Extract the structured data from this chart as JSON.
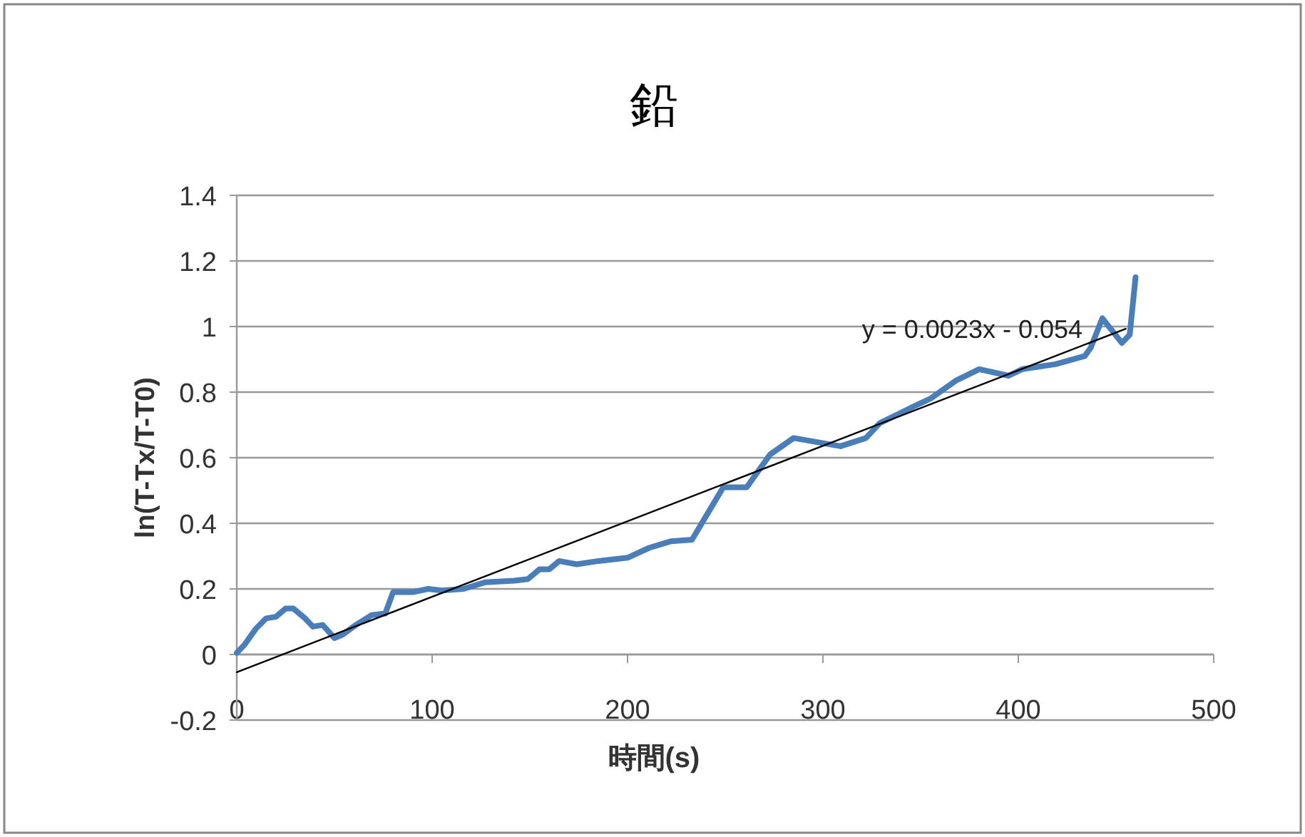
{
  "chart_data": {
    "type": "line",
    "title": "鉛",
    "xlabel": "時間(s)",
    "ylabel": "ln(T-Tx/T-T0)",
    "xlim": [
      0,
      500
    ],
    "xticks": [
      0,
      100,
      200,
      300,
      400,
      500
    ],
    "ylim": [
      -0.2,
      1.4
    ],
    "yticks": [
      -0.2,
      0,
      0.2,
      0.4,
      0.6,
      0.8,
      1,
      1.2,
      1.4
    ],
    "grid": "y",
    "annotations": [
      "y = 0.0023x - 0.054"
    ],
    "series": [
      {
        "color": "#4a7ebb",
        "x": [
          0,
          4,
          10,
          15,
          20,
          25,
          29,
          35,
          39,
          44,
          50,
          54,
          61,
          69,
          76,
          80,
          90,
          98,
          105,
          116,
          127,
          142,
          149,
          155,
          160,
          165,
          174,
          185,
          200,
          211,
          222,
          233,
          239,
          249,
          261,
          273,
          285,
          309,
          322,
          329,
          346,
          355,
          368,
          380,
          395,
          402,
          419,
          434,
          437,
          443,
          453,
          457,
          460
        ],
        "values": [
          0.005,
          0.03,
          0.08,
          0.11,
          0.115,
          0.14,
          0.14,
          0.11,
          0.085,
          0.09,
          0.05,
          0.06,
          0.09,
          0.12,
          0.125,
          0.19,
          0.19,
          0.2,
          0.195,
          0.2,
          0.22,
          0.225,
          0.23,
          0.26,
          0.26,
          0.285,
          0.275,
          0.285,
          0.295,
          0.325,
          0.345,
          0.35,
          0.41,
          0.51,
          0.51,
          0.61,
          0.66,
          0.635,
          0.66,
          0.705,
          0.755,
          0.78,
          0.835,
          0.87,
          0.85,
          0.87,
          0.885,
          0.91,
          0.935,
          1.025,
          0.95,
          0.975,
          1.15
        ]
      },
      {
        "type": "line",
        "color": "#000000",
        "x": [
          0,
          455
        ],
        "values": [
          -0.054,
          0.993
        ]
      }
    ]
  }
}
